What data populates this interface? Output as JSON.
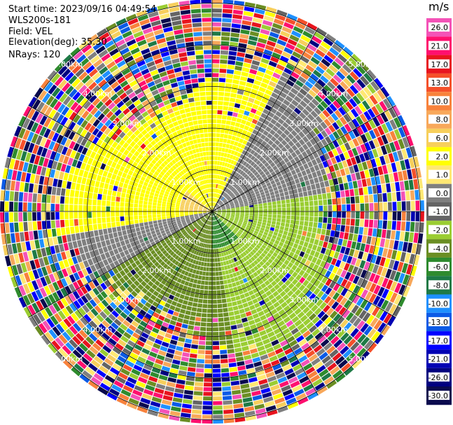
{
  "info": {
    "start_time": "Start time: 2023/09/16 04:49:54",
    "instrument": "WLS200s-181",
    "field": "Field: VEL",
    "elevation": "Elevation(deg): 35.30",
    "nrays": "NRays: 120"
  },
  "colorbar": {
    "unit": "m/s",
    "ticks": [
      "26.0",
      "21.0",
      "17.0",
      "13.0",
      "10.0",
      "8.0",
      "6.0",
      "2.0",
      "1.0",
      "0.0",
      "-1.0",
      "-2.0",
      "-4.0",
      "-6.0",
      "-8.0",
      "-10.0",
      "-13.0",
      "-17.0",
      "-21.0",
      "-26.0",
      "-30.0"
    ],
    "colors": [
      "#f452b7",
      "#ff0f6e",
      "#e8141e",
      "#f5502a",
      "#f8823c",
      "#f8a85a",
      "#f7cf5c",
      "#ffff00",
      "#ffe873",
      "#7f7f7f",
      "#646464",
      "#9acd32",
      "#6b8e23",
      "#2e8b2e",
      "#1e7a46",
      "#1e90ff",
      "#0a5ae6",
      "#0000ff",
      "#0000b4",
      "#000080",
      "#0a0a4e"
    ]
  },
  "chart_data": {
    "type": "heatmap",
    "title": "",
    "projection": "polar PPI scan",
    "field": "VEL",
    "units": "m/s",
    "nrays": 120,
    "azimuth_range_deg": [
      0,
      360
    ],
    "range_rings_km": [
      1.0,
      2.0,
      3.0,
      4.0,
      5.0
    ],
    "ring_labels": [
      "1.00km",
      "2.00km",
      "3.00km",
      "4.00km",
      "5.00km"
    ],
    "spokes_every_deg": 30,
    "value_range": [
      -30,
      26
    ],
    "sectors": [
      {
        "azimuth": "W to N",
        "values_m_s": "1.0 to 2.0"
      },
      {
        "azimuth": "NE to E",
        "values_m_s": "0.0"
      },
      {
        "azimuth": "E to SSE",
        "values_m_s": "-1.0 to -2.0"
      },
      {
        "azimuth": "S to SW",
        "values_m_s": "-2.0"
      },
      {
        "azimuth": "WSW",
        "values_m_s": "0.0"
      },
      {
        "azimuth": "near centre SSE",
        "values_m_s": "-4.0"
      },
      {
        "azimuth": "near centre WNW",
        "values_m_s": "6.0"
      },
      {
        "azimuth": "outer ranges",
        "values_m_s": "-30.0 to 26.0 (noise)"
      }
    ]
  }
}
